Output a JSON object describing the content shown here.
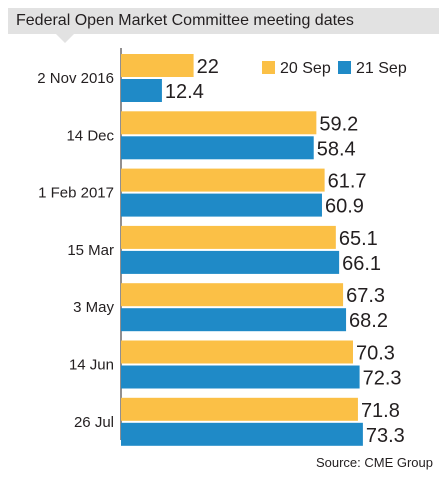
{
  "chart_data": {
    "type": "bar",
    "orientation": "horizontal",
    "title": "Federal Open Market Committee meeting dates",
    "categories": [
      "2 Nov 2016",
      "14 Dec",
      "1 Feb 2017",
      "15 Mar",
      "3 May",
      "14 Jun",
      "26 Jul"
    ],
    "series": [
      {
        "name": "20 Sep",
        "color": "#fbc046",
        "values": [
          22,
          59.2,
          61.7,
          65.1,
          67.3,
          70.3,
          71.8
        ]
      },
      {
        "name": "21 Sep",
        "color": "#1f8ac7",
        "values": [
          12.4,
          58.4,
          60.9,
          66.1,
          68.2,
          72.3,
          73.3
        ]
      }
    ],
    "xlim": [
      0,
      80
    ],
    "grid": false,
    "legend_position": "top-right",
    "source": "Source: CME Group"
  }
}
